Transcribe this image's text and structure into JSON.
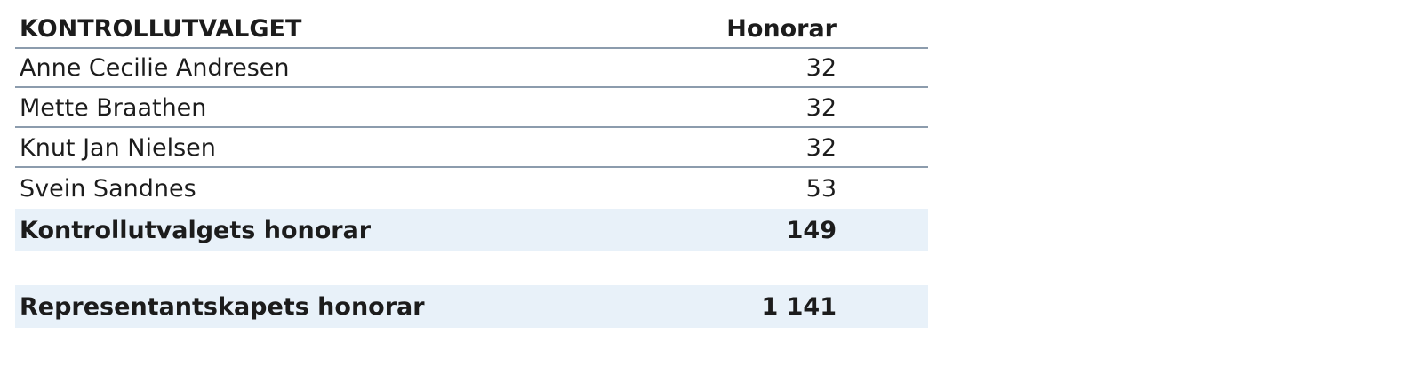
{
  "table": {
    "header": [
      "KONTROLLUTVALGET",
      "Honorar"
    ],
    "rows": [
      [
        "Anne Cecilie Andresen",
        "32"
      ],
      [
        "Mette Braathen",
        "32"
      ],
      [
        "Knut Jan Nielsen",
        "32"
      ],
      [
        "Svein Sandnes",
        "53"
      ]
    ],
    "totals": [
      [
        "Kontrollutvalgets honorar",
        "149"
      ],
      [
        "Representantskapets honorar",
        "1 141"
      ]
    ]
  }
}
